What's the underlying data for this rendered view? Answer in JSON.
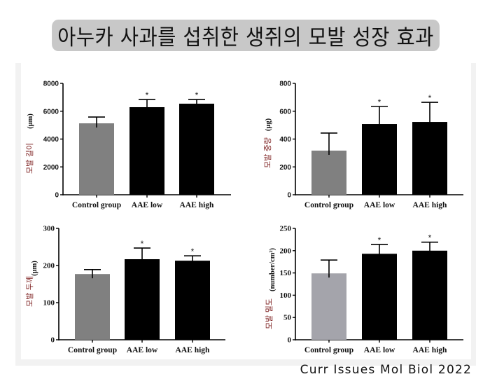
{
  "title": "아누카 사과를 섭취한 생쥐의 모발 성장 효과",
  "citation": "Curr Issues Mol Biol 2022",
  "colors": {
    "title_bg": "#c8c8c8",
    "control_bar": "#808080",
    "control_bar_density": "#a4a4ab",
    "treatment_bar": "#000000",
    "ylabel_korean": "#7a1a1a"
  },
  "chart_data": [
    {
      "type": "bar",
      "title": "",
      "ylabel": "모발 길이 (μm)",
      "ylabel_korean": "모발 길이",
      "ylabel_unit": "(μm)",
      "xlabel": "",
      "categories": [
        "Control group",
        "AAE low",
        "AAE high"
      ],
      "values": [
        5130,
        6290,
        6540
      ],
      "error": [
        450,
        550,
        300
      ],
      "significance": [
        "",
        "*",
        "*"
      ],
      "ylim": [
        0,
        8000
      ],
      "yticks": [
        0,
        2000,
        4000,
        6000,
        8000
      ],
      "grid": false
    },
    {
      "type": "bar",
      "title": "",
      "ylabel": "모발 중량 (μg)",
      "ylabel_korean": "모발 중량",
      "ylabel_unit": "(μg)",
      "xlabel": "",
      "categories": [
        "Control group",
        "AAE low",
        "AAE high"
      ],
      "values": [
        317,
        508,
        523
      ],
      "error": [
        126,
        126,
        141
      ],
      "significance": [
        "",
        "*",
        "*"
      ],
      "ylim": [
        0,
        800
      ],
      "yticks": [
        0,
        200,
        400,
        600,
        800
      ],
      "grid": false
    },
    {
      "type": "bar",
      "title": "",
      "ylabel": "모발 두께 (μm)",
      "ylabel_korean": "모발 두께",
      "ylabel_unit": "(μm)",
      "xlabel": "",
      "categories": [
        "Control group",
        "AAE low",
        "AAE high"
      ],
      "values": [
        177,
        217,
        213
      ],
      "error": [
        12,
        30,
        13
      ],
      "significance": [
        "",
        "*",
        "*"
      ],
      "ylim": [
        0,
        300
      ],
      "yticks": [
        0,
        100,
        200,
        300
      ],
      "grid": false
    },
    {
      "type": "bar",
      "title": "",
      "ylabel": "모발 밀도 (number/cm²)",
      "ylabel_korean": "모발 밀도",
      "ylabel_unit": "(number/cm²)",
      "xlabel": "",
      "categories": [
        "Control group",
        "AAE low",
        "AAE high"
      ],
      "values": [
        149,
        193,
        200
      ],
      "error": [
        30,
        21,
        19
      ],
      "significance": [
        "",
        "*",
        "*"
      ],
      "ylim": [
        0,
        250
      ],
      "yticks": [
        0,
        50,
        100,
        150,
        200,
        250
      ],
      "grid": false
    }
  ]
}
